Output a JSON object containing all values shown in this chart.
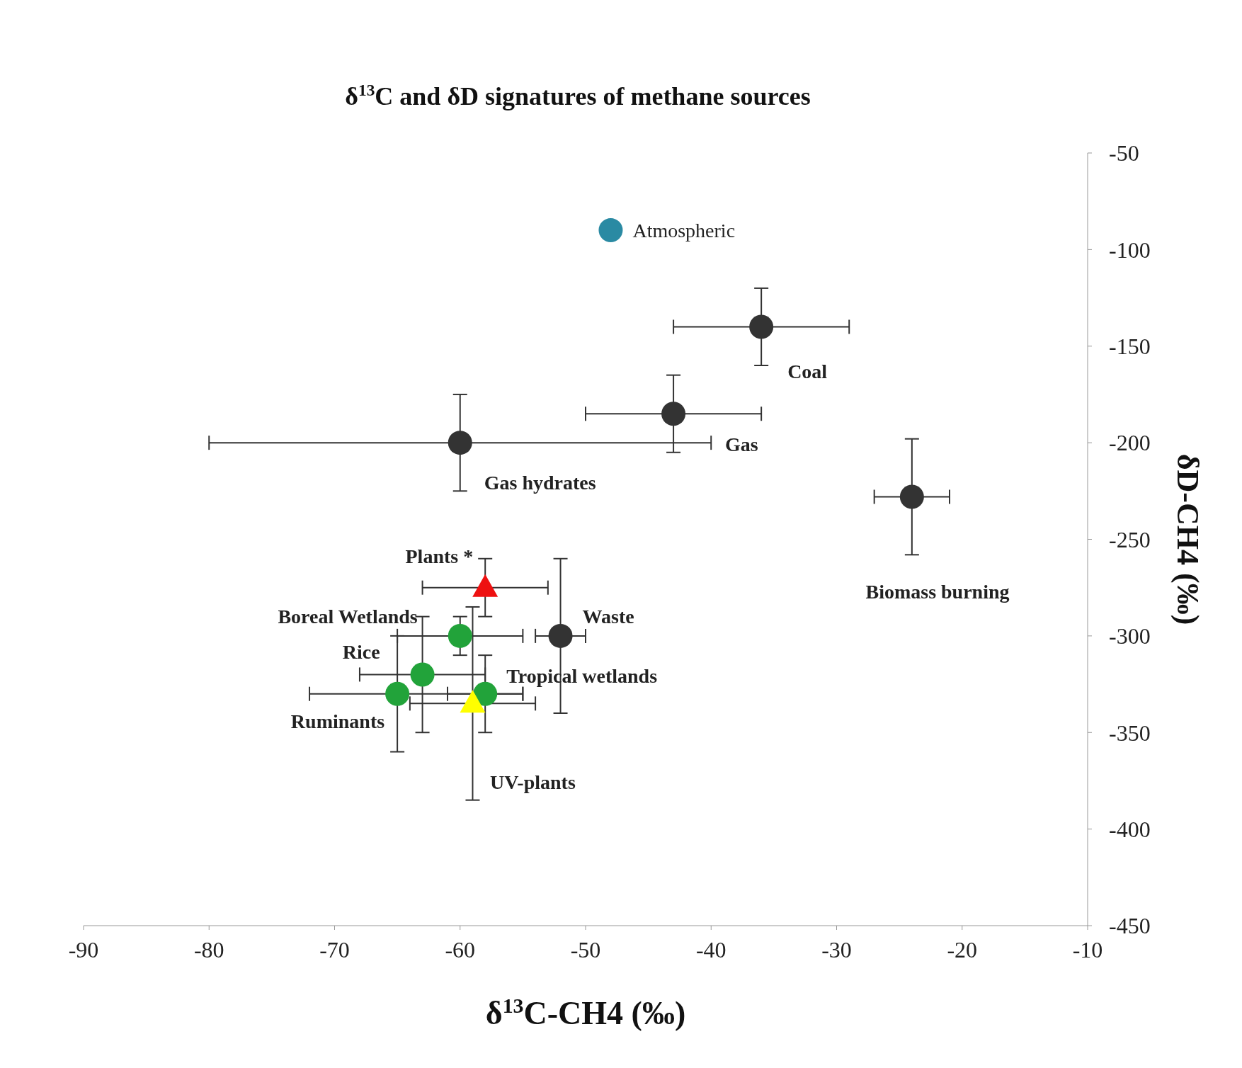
{
  "chart_data": {
    "type": "scatter",
    "title": "δ$^{13}$C and δD signatures of methane sources",
    "xlabel": "δ$^{13}$C-CH4 (‰)",
    "ylabel": "δD-CH4 (‰)",
    "xlim": [
      -90,
      -10
    ],
    "xticks": [
      -90,
      -80,
      -70,
      -60,
      -50,
      -40,
      -30,
      -20,
      -10
    ],
    "ylim": [
      -450,
      -50
    ],
    "yticks": [
      -450,
      -400,
      -350,
      -300,
      -250,
      -200,
      -150,
      -100,
      -50
    ],
    "grid": false,
    "legend": false,
    "series": [
      {
        "color": "#2a8aa3",
        "marker": "circle",
        "x": [
          -48
        ],
        "values": [
          -90
        ]
      },
      {
        "color": "#333333",
        "marker": "circle",
        "x": [
          -36,
          -43,
          -60,
          -24,
          -52
        ],
        "values": [
          -140,
          -185,
          -200,
          -228,
          -300
        ],
        "errors": [
          [
            -160,
            -120
          ],
          [
            -205,
            -165
          ],
          [
            -225,
            -175
          ],
          [
            -258,
            -198
          ],
          [
            -340,
            -260
          ]
        ],
        "xerrors": [
          [
            -43,
            -29
          ],
          [
            -50,
            -36
          ],
          [
            -80,
            -40
          ],
          [
            -27,
            -21
          ],
          [
            -54,
            -50
          ]
        ]
      },
      {
        "color": "#22a33a",
        "marker": "circle",
        "x": [
          -60,
          -63,
          -65,
          -58
        ],
        "values": [
          -300,
          -320,
          -330,
          -330
        ],
        "errors": [
          [
            -310,
            -290
          ],
          [
            -350,
            -290
          ],
          [
            -360,
            -300
          ],
          [
            -350,
            -310
          ]
        ],
        "xerrors": [
          [
            -65,
            -55
          ],
          [
            -68,
            -58
          ],
          [
            -72,
            -55
          ],
          [
            -61,
            -55
          ]
        ]
      },
      {
        "color": "#ee1111",
        "marker": "triangle",
        "x": [
          -58
        ],
        "values": [
          -275
        ],
        "errors": [
          [
            -290,
            -260
          ]
        ],
        "xerrors": [
          [
            -63,
            -53
          ]
        ]
      },
      {
        "color": "#ffff00",
        "marker": "triangle",
        "x": [
          -59
        ],
        "values": [
          -335
        ],
        "errors": [
          [
            -385,
            -285
          ]
        ],
        "xerrors": [
          [
            -64,
            -54
          ]
        ]
      }
    ],
    "annotations": [
      {
        "text": "Atmospheric",
        "x": -48,
        "y": -90
      },
      {
        "text": "Coal",
        "x": -36,
        "y": -140
      },
      {
        "text": "Gas",
        "x": -43,
        "y": -185
      },
      {
        "text": "Gas hydrates",
        "x": -60,
        "y": -200
      },
      "Biomass burning",
      {
        "text": "Waste",
        "x": -52,
        "y": -300
      },
      {
        "text": "Boreal Wetlands",
        "x": -60,
        "y": -300
      },
      {
        "text": "Rice",
        "x": -63,
        "y": -320
      },
      {
        "text": "Ruminants",
        "x": -65,
        "y": -330
      },
      {
        "text": "Tropical wetlands",
        "x": -58,
        "y": -330
      },
      {
        "text": "Plants *",
        "x": -58,
        "y": -275
      },
      "UV-plants"
    ]
  }
}
